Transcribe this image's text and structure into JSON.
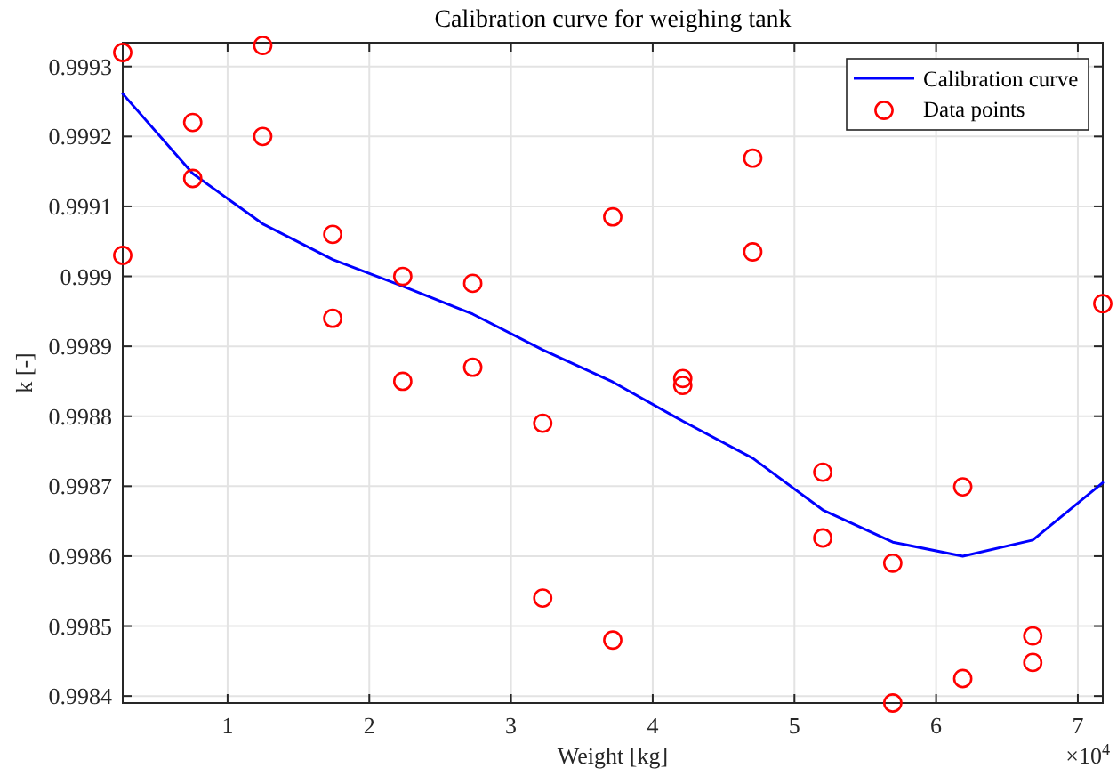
{
  "chart_data": {
    "type": "line",
    "title": "Calibration curve for weighing tank",
    "xlabel": "Weight [kg]",
    "ylabel": "k [-]",
    "annotations": [
      "×10$^{4}$"
    ],
    "xlim": [
      0.26,
      7.176
    ],
    "ylim": [
      0.99839,
      0.999334
    ],
    "xticks": [
      1,
      2,
      3,
      4,
      5,
      6,
      7
    ],
    "yticks": [
      0.9984,
      0.9985,
      0.9986,
      0.9987,
      0.9988,
      0.9989,
      0.999,
      0.9991,
      0.9992,
      0.9993
    ],
    "grid": true,
    "legend": "top right",
    "series": [
      {
        "name": "Calibration curve",
        "color": "#0000ff",
        "marker": "none",
        "line_style": "solid",
        "x": [
          0.26,
          0.754,
          1.248,
          1.742,
          2.236,
          2.73,
          3.224,
          3.718,
          4.212,
          4.706,
          5.2,
          5.694,
          6.188,
          6.682,
          7.176
        ],
        "values": [
          0.999261,
          0.999147,
          0.999075,
          0.999024,
          0.998986,
          0.998946,
          0.998895,
          0.998849,
          0.998793,
          0.99874,
          0.998666,
          0.99862,
          0.9986,
          0.998623,
          0.998705
        ]
      },
      {
        "name": "Data points",
        "type": "scatter",
        "color": "#ff0000",
        "marker": "circle",
        "x": [
          0.26,
          0.26,
          0.754,
          0.754,
          1.248,
          1.248,
          1.742,
          1.742,
          2.236,
          2.236,
          2.73,
          2.73,
          3.224,
          3.224,
          3.718,
          3.718,
          4.212,
          4.212,
          4.706,
          4.706,
          5.2,
          5.2,
          5.694,
          5.694,
          6.188,
          6.188,
          6.682,
          6.682,
          7.176
        ],
        "values": [
          0.99932,
          0.99903,
          0.99922,
          0.99914,
          0.99933,
          0.9992,
          0.99906,
          0.99894,
          0.999,
          0.99885,
          0.99899,
          0.99887,
          0.99879,
          0.99854,
          0.999085,
          0.99848,
          0.998854,
          0.998844,
          0.999169,
          0.999035,
          0.99872,
          0.998626,
          0.99859,
          0.99839,
          0.998699,
          0.998425,
          0.998486,
          0.998448,
          0.998961
        ]
      }
    ]
  }
}
